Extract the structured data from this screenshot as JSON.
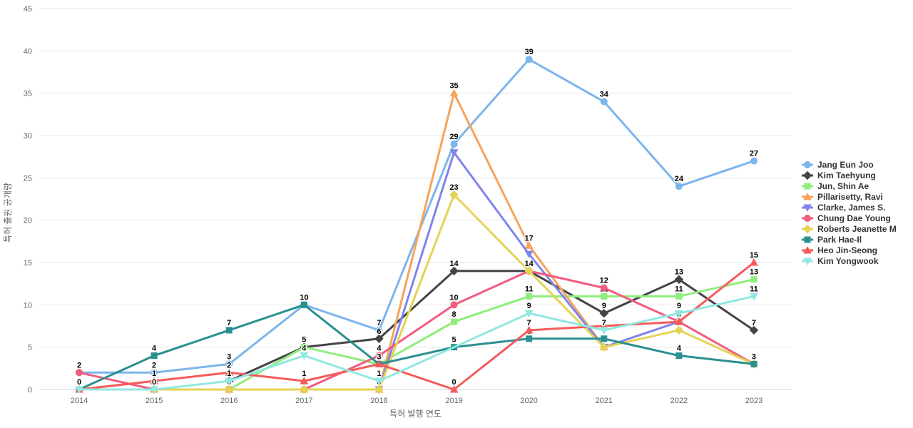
{
  "chart_data": {
    "type": "line",
    "title": "",
    "xlabel": "특허 발행 연도",
    "ylabel": "특허 출원 공개량",
    "x_ticks": [
      2014,
      2015,
      2016,
      2017,
      2018,
      2019,
      2020,
      2021,
      2022,
      2023
    ],
    "y_ticks": [
      0,
      5,
      10,
      15,
      20,
      25,
      30,
      35,
      40,
      45
    ],
    "ylim": [
      0,
      45
    ],
    "grid": "horizontal-only",
    "legend_position": "right",
    "grid_color": "#e6e6e6",
    "axis_line_color": "#ccd6eb",
    "tick_label_color": "#666666",
    "legend_text_color": "#333333",
    "series": [
      {
        "name": "Jang Eun Joo",
        "color": "#7cb5ec",
        "marker": "circle",
        "points": [
          [
            2014,
            2
          ],
          [
            2015,
            2
          ],
          [
            2016,
            3
          ],
          [
            2017,
            10
          ],
          [
            2018,
            7
          ],
          [
            2019,
            29
          ],
          [
            2020,
            39
          ],
          [
            2021,
            34
          ],
          [
            2022,
            24
          ],
          [
            2023,
            27
          ]
        ]
      },
      {
        "name": "Kim Taehyung",
        "color": "#434348",
        "marker": "diamond",
        "points": [
          [
            2016,
            1
          ],
          [
            2017,
            5
          ],
          [
            2018,
            6
          ],
          [
            2019,
            14
          ],
          [
            2020,
            14
          ],
          [
            2021,
            9
          ],
          [
            2022,
            13
          ],
          [
            2023,
            7
          ]
        ]
      },
      {
        "name": "Jun, Shin Ae",
        "color": "#90ed7d",
        "marker": "square",
        "points": [
          [
            2015,
            0
          ],
          [
            2016,
            0
          ],
          [
            2017,
            5
          ],
          [
            2018,
            3
          ],
          [
            2019,
            8
          ],
          [
            2020,
            11
          ],
          [
            2021,
            11
          ],
          [
            2022,
            11
          ],
          [
            2023,
            13
          ]
        ]
      },
      {
        "name": "Pillarisetty, Ravi",
        "color": "#f7a35c",
        "marker": "triangle",
        "points": [
          [
            2015,
            0
          ],
          [
            2016,
            0
          ],
          [
            2017,
            0
          ],
          [
            2018,
            0
          ],
          [
            2019,
            35
          ],
          [
            2020,
            17
          ],
          [
            2021,
            5
          ]
        ]
      },
      {
        "name": "Clarke, James S.",
        "color": "#8085e9",
        "marker": "triangle-down",
        "points": [
          [
            2018,
            0
          ],
          [
            2019,
            28
          ],
          [
            2020,
            16
          ],
          [
            2021,
            5
          ],
          [
            2022,
            8
          ]
        ]
      },
      {
        "name": "Chung Dae Young",
        "color": "#f15c80",
        "marker": "circle",
        "points": [
          [
            2014,
            2
          ],
          [
            2015,
            0
          ],
          [
            2016,
            0
          ],
          [
            2017,
            0
          ],
          [
            2018,
            4
          ],
          [
            2019,
            10
          ],
          [
            2020,
            14
          ],
          [
            2021,
            12
          ],
          [
            2022,
            8
          ],
          [
            2023,
            3
          ]
        ]
      },
      {
        "name": "Roberts Jeanette M",
        "color": "#e4d354",
        "marker": "diamond",
        "points": [
          [
            2015,
            0
          ],
          [
            2016,
            0
          ],
          [
            2017,
            0
          ],
          [
            2018,
            0
          ],
          [
            2019,
            23
          ],
          [
            2020,
            14
          ],
          [
            2021,
            5
          ],
          [
            2022,
            7
          ],
          [
            2023,
            3
          ]
        ]
      },
      {
        "name": "Park Hae-Il",
        "color": "#2b908f",
        "marker": "square",
        "points": [
          [
            2014,
            0
          ],
          [
            2015,
            4
          ],
          [
            2016,
            7
          ],
          [
            2017,
            10
          ],
          [
            2018,
            3
          ],
          [
            2019,
            5
          ],
          [
            2020,
            6
          ],
          [
            2021,
            6
          ],
          [
            2022,
            4
          ],
          [
            2023,
            3
          ]
        ]
      },
      {
        "name": "Heo Jin-Seong",
        "color": "#f45b5b",
        "marker": "triangle",
        "points": [
          [
            2014,
            0
          ],
          [
            2015,
            1
          ],
          [
            2016,
            2
          ],
          [
            2017,
            1
          ],
          [
            2018,
            3
          ],
          [
            2019,
            0
          ],
          [
            2020,
            7
          ],
          [
            2022,
            8
          ],
          [
            2023,
            15
          ]
        ]
      },
      {
        "name": "Kim Yongwook",
        "color": "#91e8e1",
        "marker": "triangle-down",
        "points": [
          [
            2014,
            0
          ],
          [
            2015,
            0
          ],
          [
            2016,
            1
          ],
          [
            2017,
            4
          ],
          [
            2018,
            1
          ],
          [
            2020,
            9
          ],
          [
            2021,
            7
          ],
          [
            2022,
            9
          ],
          [
            2023,
            11
          ]
        ]
      }
    ],
    "hidden_labels": [
      [
        "Clarke, James S.",
        2019
      ],
      [
        "Clarke, James S.",
        2020
      ],
      [
        "Park Hae-Il",
        2021
      ]
    ]
  },
  "axes": {
    "x_title": "특허 발행 연도",
    "y_title": "특허 출원 공개량"
  }
}
